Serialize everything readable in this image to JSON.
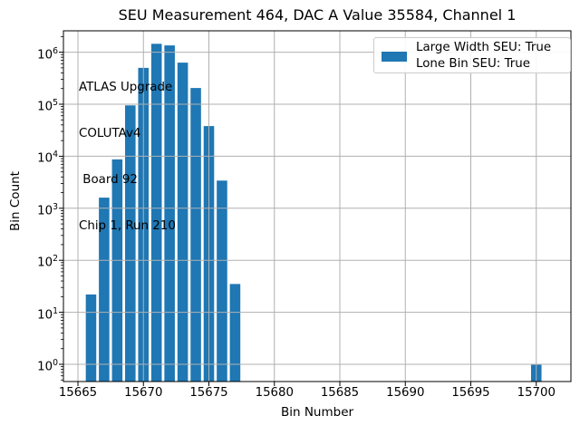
{
  "chart_data": {
    "type": "bar",
    "title": "SEU Measurement 464, DAC A Value 35584, Channel 1",
    "xlabel": "Bin Number",
    "ylabel": "Bin Count",
    "yscale": "log",
    "grid": true,
    "bar_color": "#1f77b4",
    "grid_color": "#b0b0b0",
    "axis_color": "#000000",
    "xlim": [
      15663.95,
      15702.65
    ],
    "ylim": [
      0.47,
      2600000
    ],
    "xticks": [
      15665,
      15670,
      15675,
      15680,
      15685,
      15690,
      15695,
      15700
    ],
    "ytick_exponents": [
      0,
      1,
      2,
      3,
      4,
      5,
      6
    ],
    "bar_rel_width": 0.8,
    "bars": [
      {
        "bin": 15666,
        "count": 22
      },
      {
        "bin": 15667,
        "count": 1600
      },
      {
        "bin": 15668,
        "count": 8700
      },
      {
        "bin": 15669,
        "count": 95000
      },
      {
        "bin": 15670,
        "count": 500000
      },
      {
        "bin": 15671,
        "count": 1450000
      },
      {
        "bin": 15672,
        "count": 1350000
      },
      {
        "bin": 15673,
        "count": 630000
      },
      {
        "bin": 15674,
        "count": 205000
      },
      {
        "bin": 15675,
        "count": 38000
      },
      {
        "bin": 15676,
        "count": 3400
      },
      {
        "bin": 15677,
        "count": 35
      },
      {
        "bin": 15700,
        "count": 1
      }
    ],
    "legend": {
      "position": "top-right",
      "entries": [
        {
          "swatch_color": "#1f77b4",
          "label_lines": [
            "Large Width SEU: True",
            "Lone Bin SEU: True"
          ]
        }
      ]
    },
    "annotation": {
      "lines": [
        "ATLAS Upgrade",
        "COLUTAv4",
        " Board 92",
        "Chip 1, Run 210"
      ]
    }
  }
}
